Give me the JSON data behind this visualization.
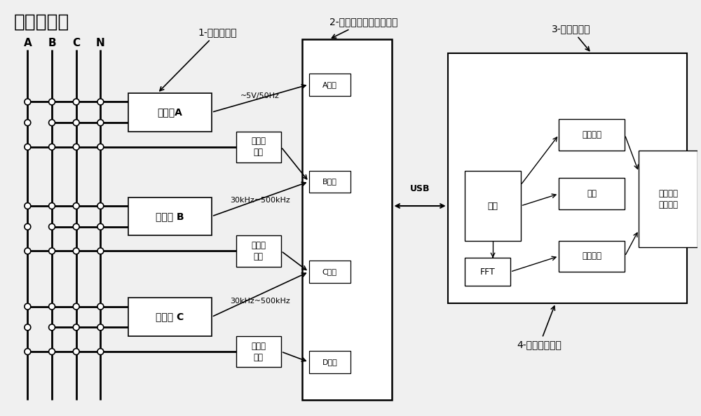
{
  "title": "三相电力线",
  "bg_color": "#f0f0f0",
  "line_color": "#000000",
  "box_color": "#ffffff",
  "box_edge": "#000000",
  "phase_labels": [
    "A",
    "B",
    "C",
    "N"
  ],
  "coupler_labels": [
    "耦合器A",
    "耦合器 B",
    "耦合器 C"
  ],
  "coupler_freq_A": "~5V/50Hz",
  "coupler_freq_BC": "30kHz~500kHz",
  "channel_labels": [
    "A通道",
    "B通道",
    "C通道",
    "D通道"
  ],
  "transformer_label": "工频变\n压器",
  "annotation1": "1-单相耦合器",
  "annotation2": "2-多通道高速数据采集卡",
  "annotation3": "3-笔记本电脑",
  "annotation4": "4-测试分析原件",
  "usb_label": "USB",
  "label_shuyu": "时域波形",
  "label_kongzhi": "控制",
  "label_pinyu": "频域波形",
  "label_fft": "FFT",
  "label_shuju": "数据",
  "label_display": "数据显示\n数据存储"
}
